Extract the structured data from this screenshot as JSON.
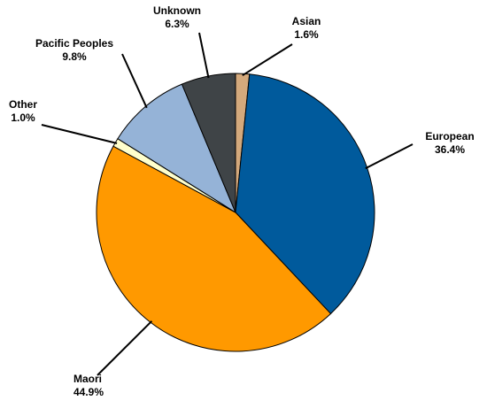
{
  "chart_data": {
    "type": "pie",
    "categories": [
      "Asian",
      "European",
      "Maori",
      "Other",
      "Pacific Peoples",
      "Unknown"
    ],
    "values": [
      1.6,
      36.4,
      44.9,
      1.0,
      9.8,
      6.3
    ],
    "value_labels": [
      "1.6%",
      "36.4%",
      "44.9%",
      "1.0%",
      "9.8%",
      "6.3%"
    ],
    "colors": [
      "#d4a97c",
      "#005a9c",
      "#ff9900",
      "#ffffcc",
      "#95b3d7",
      "#3f4447"
    ]
  }
}
